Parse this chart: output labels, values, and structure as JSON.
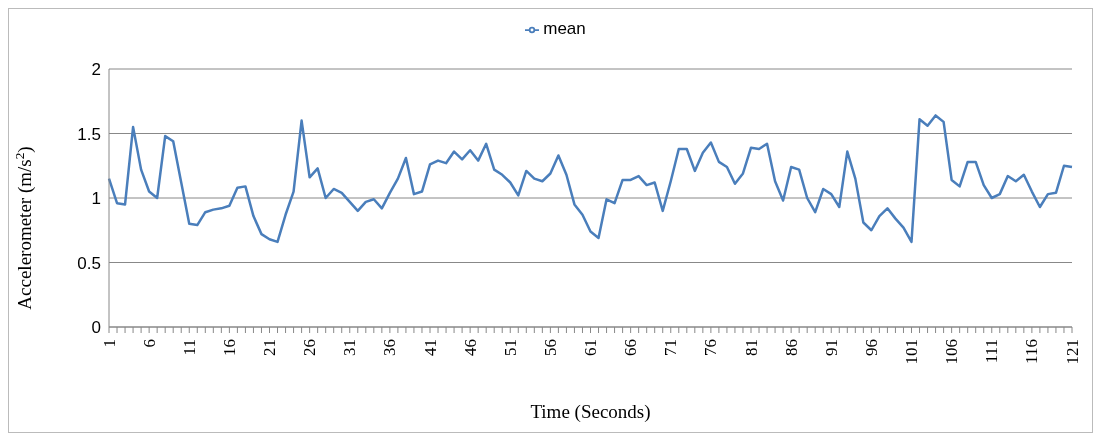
{
  "chart_data": {
    "type": "line",
    "xlabel": "Time (Seconds)",
    "ylabel": "Accelerometer (m/s$^{2}$)",
    "categories": [
      "1",
      null,
      null,
      null,
      null,
      "6",
      null,
      null,
      null,
      null,
      "11",
      null,
      null,
      null,
      null,
      "16",
      null,
      null,
      null,
      null,
      "21",
      null,
      null,
      null,
      null,
      "26",
      null,
      null,
      null,
      null,
      "31",
      null,
      null,
      null,
      null,
      "36",
      null,
      null,
      null,
      null,
      "41",
      null,
      null,
      null,
      null,
      "46",
      null,
      null,
      null,
      null,
      "51",
      null,
      null,
      null,
      null,
      "56",
      null,
      null,
      null,
      null,
      "61",
      null,
      null,
      null,
      null,
      "66",
      null,
      null,
      null,
      null,
      "71",
      null,
      null,
      null,
      null,
      "76",
      null,
      null,
      null,
      null,
      "81",
      null,
      null,
      null,
      null,
      "86",
      null,
      null,
      null,
      null,
      "91",
      null,
      null,
      null,
      null,
      "96",
      null,
      null,
      null,
      null,
      "101",
      null,
      null,
      null,
      null,
      "106",
      null,
      null,
      null,
      null,
      "111",
      null,
      null,
      null,
      null,
      "116",
      null,
      null,
      null,
      null,
      "121"
    ],
    "series": [
      {
        "name": "mean",
        "color": "#4a7ebb",
        "values": [
          1.15,
          0.96,
          0.95,
          1.55,
          1.22,
          1.05,
          1.0,
          1.48,
          1.44,
          1.12,
          0.8,
          0.79,
          0.89,
          0.91,
          0.92,
          0.94,
          1.08,
          1.09,
          0.86,
          0.72,
          0.68,
          0.66,
          0.87,
          1.05,
          1.6,
          1.16,
          1.23,
          1.0,
          1.07,
          1.04,
          0.97,
          0.9,
          0.97,
          0.99,
          0.92,
          1.04,
          1.15,
          1.31,
          1.03,
          1.05,
          1.26,
          1.29,
          1.27,
          1.36,
          1.3,
          1.37,
          1.29,
          1.42,
          1.22,
          1.18,
          1.12,
          1.02,
          1.21,
          1.15,
          1.13,
          1.19,
          1.33,
          1.18,
          0.95,
          0.87,
          0.74,
          0.69,
          0.99,
          0.96,
          1.14,
          1.14,
          1.17,
          1.1,
          1.12,
          0.9,
          1.13,
          1.38,
          1.38,
          1.21,
          1.35,
          1.43,
          1.28,
          1.24,
          1.11,
          1.19,
          1.39,
          1.38,
          1.42,
          1.13,
          0.98,
          1.24,
          1.22,
          1.0,
          0.89,
          1.07,
          1.03,
          0.93,
          1.36,
          1.15,
          0.81,
          0.75,
          0.86,
          0.92,
          0.84,
          0.77,
          0.66,
          1.61,
          1.56,
          1.64,
          1.59,
          1.14,
          1.09,
          1.28,
          1.28,
          1.1,
          1.0,
          1.03,
          1.17,
          1.13,
          1.18,
          1.05,
          0.93,
          1.03,
          1.04,
          1.25,
          1.24
        ]
      }
    ],
    "ylim": [
      0,
      2
    ],
    "yticks": [
      0,
      {
        "value": 0.5,
        "label": "0.5"
      },
      1,
      {
        "value": 1.5,
        "label": "1.5"
      },
      2
    ],
    "grid": "y",
    "legend": "top",
    "marker": "none",
    "line_style": "solid"
  }
}
